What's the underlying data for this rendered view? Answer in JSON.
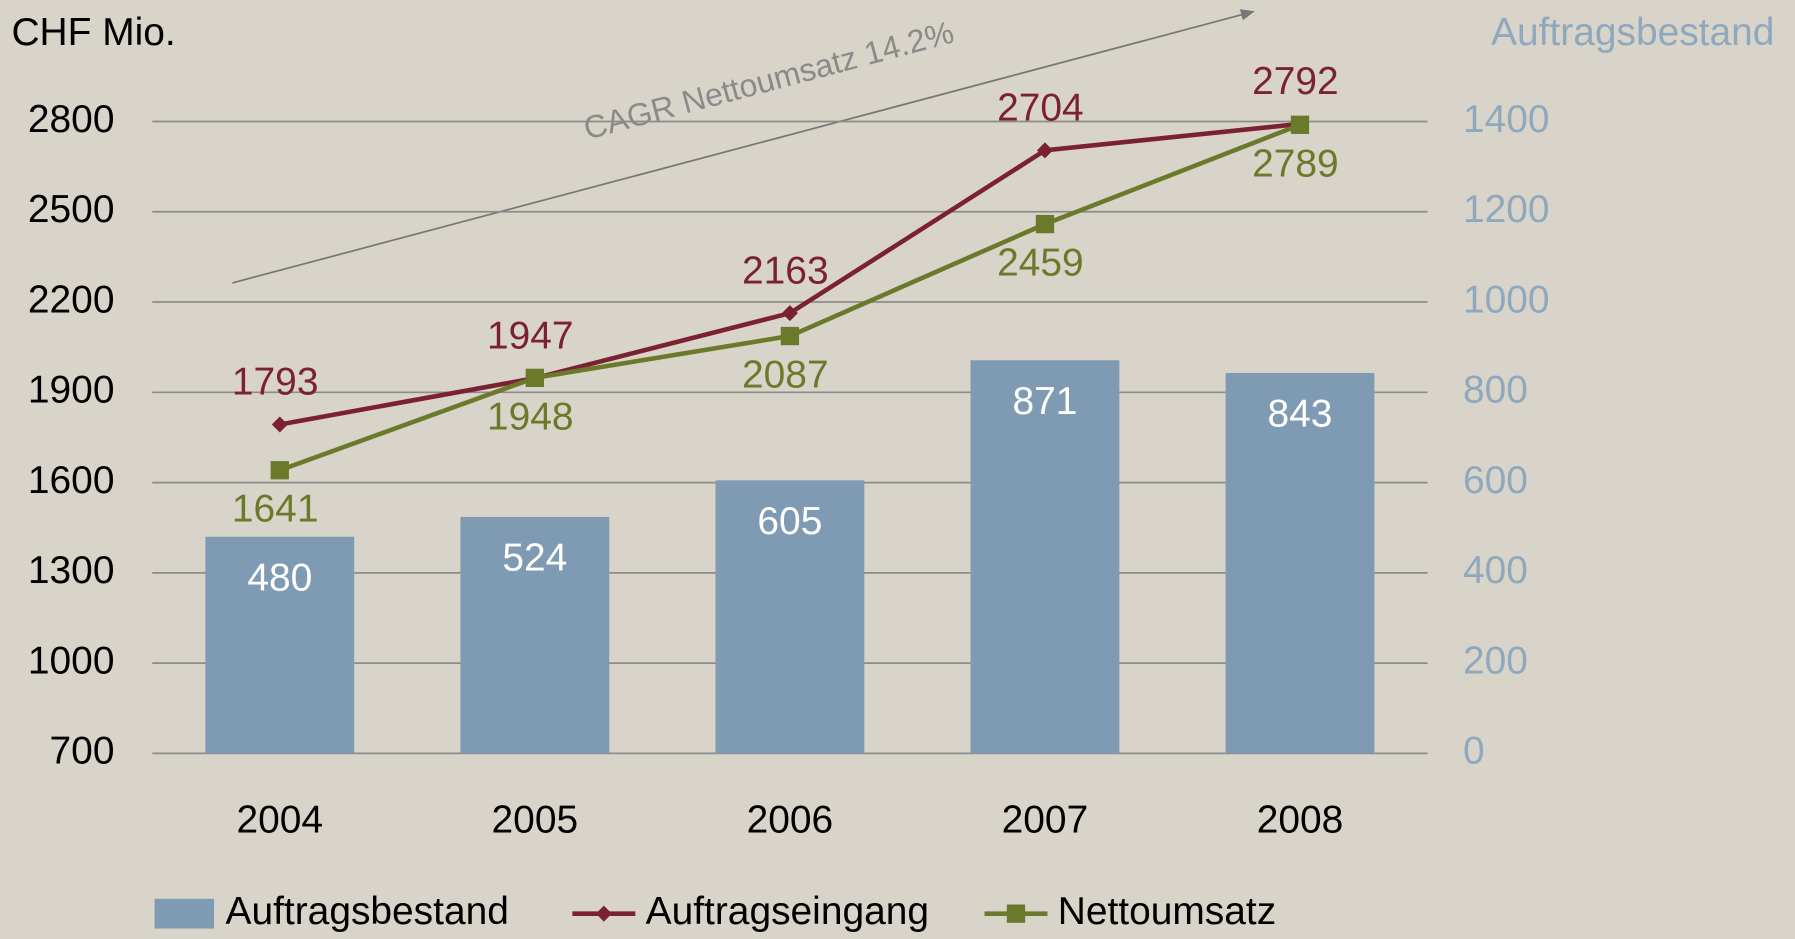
{
  "chart_data": {
    "type": "bar_line",
    "y_label": "CHF Mio.",
    "y2_label": "Auftragsbestand",
    "categories": [
      "2004",
      "2005",
      "2006",
      "2007",
      "2008"
    ],
    "series": [
      {
        "name": "Auftragsbestand",
        "type": "bar",
        "axis": "y2",
        "color": "#7f9bb3",
        "values": [
          480,
          524,
          605,
          871,
          843
        ]
      },
      {
        "name": "Auftragseingang",
        "type": "line",
        "axis": "y",
        "color": "#7b2232",
        "marker": "diamond",
        "values": [
          1793,
          1947,
          2163,
          2704,
          2792
        ]
      },
      {
        "name": "Nettoumsatz",
        "type": "line",
        "axis": "y",
        "color": "#6b7a2a",
        "marker": "square",
        "values": [
          1641,
          1948,
          2087,
          2459,
          2789
        ]
      }
    ],
    "ylim": [
      700,
      2800
    ],
    "yticks": [
      700,
      1000,
      1300,
      1600,
      1900,
      2200,
      2500,
      2800
    ],
    "y2lim": [
      0,
      1400
    ],
    "y2ticks": [
      0,
      200,
      400,
      600,
      800,
      1000,
      1200,
      1400
    ],
    "grid": true,
    "legend": "bottom",
    "annotations": [
      {
        "text": "CAGR Nettoumsatz 14.2%"
      }
    ]
  }
}
